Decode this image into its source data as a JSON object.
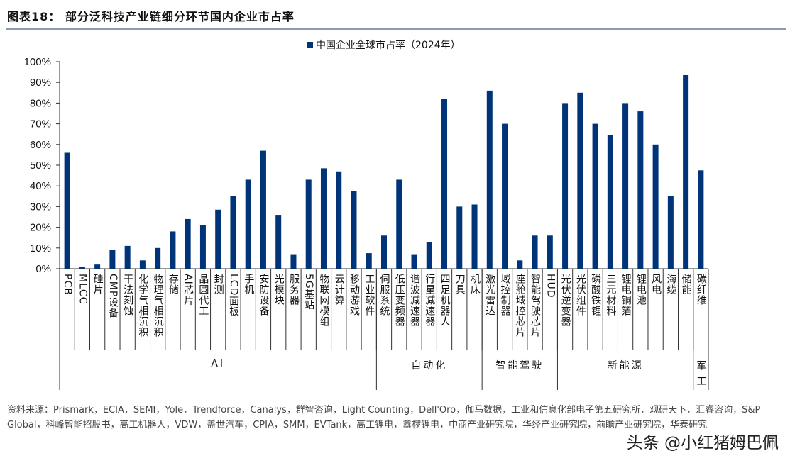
{
  "title": "图表18：  部分泛科技产业链细分环节国内企业市占率",
  "source": "资料来源：Prismark，ECIA，SEMI，Yole，Trendforce，Canalys，群智咨询，Light Counting，Dell'Oro，伽马数据，工业和信息化部电子第五研究所，观研天下，汇睿咨询，S&P Global，科峰智能招股书，高工机器人，VDW，盖世汽车，CPIA，SMM，EVTank，高工锂电，鑫椤锂电，中商产业研究院，华经产业研究院，前瞻产业研究院，华泰研究",
  "watermark": "头条 @小红猪姆巴佩",
  "colors": {
    "bar": "#003478",
    "rule": "#8c9bb3"
  },
  "chart_data": {
    "type": "bar",
    "title": "",
    "xlabel": "",
    "ylabel": "",
    "ylim": [
      0,
      100
    ],
    "yticks": [
      "0%",
      "10%",
      "20%",
      "30%",
      "40%",
      "50%",
      "60%",
      "70%",
      "80%",
      "90%",
      "100%"
    ],
    "grid": false,
    "legend_position": "top",
    "categories": [
      "PCB",
      "MLCC",
      "硅片",
      "CMP设备",
      "干法刻蚀",
      "化学气相沉积",
      "物理气相沉积",
      "存储",
      "AI芯片",
      "晶圆代工",
      "封测",
      "LCD面板",
      "手机",
      "安防设备",
      "光模块",
      "服务器",
      "5G基站",
      "物联网模组",
      "云计算",
      "移动游戏",
      "工业软件",
      "伺服系统",
      "低压变频器",
      "谐波减速器",
      "行星减速器",
      "四足机器人",
      "刀具",
      "机床",
      "激光雷达",
      "域控制器",
      "座舱域控芯片",
      "智能驾驶芯片",
      "HUD",
      "光伏逆变器",
      "光伏组件",
      "磷酸铁锂",
      "三元材料",
      "锂电铜箔",
      "锂电池",
      "风电",
      "海缆",
      "储能",
      "碳纤维"
    ],
    "groups": [
      {
        "name": "AI",
        "count": 21
      },
      {
        "name": "自动化",
        "count": 7
      },
      {
        "name": "智能驾驶",
        "count": 5
      },
      {
        "name": "新能源",
        "count": 9
      },
      {
        "name": "军工",
        "count": 1
      }
    ],
    "series": [
      {
        "name": "中国企业全球市占率（2024年）",
        "values": [
          56,
          1,
          2,
          9,
          11,
          4,
          10,
          18,
          24,
          21,
          28.5,
          35,
          43,
          57,
          26,
          7,
          43,
          48.5,
          47,
          37.5,
          7.5,
          16,
          43,
          7,
          13,
          82,
          30,
          31,
          86,
          70,
          4,
          16,
          16,
          80,
          85,
          70,
          64.5,
          80,
          76,
          60,
          35,
          93.5,
          47.5
        ]
      }
    ]
  }
}
